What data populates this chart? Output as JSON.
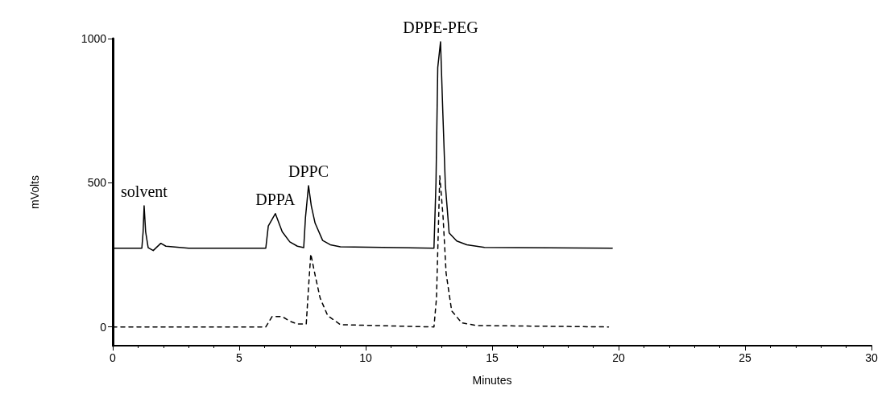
{
  "chart_data": {
    "type": "line",
    "xlabel": "Minutes",
    "ylabel": "mVolts",
    "xlim": [
      0,
      30
    ],
    "xticks": [
      0,
      5,
      10,
      15,
      20,
      25,
      30
    ],
    "ylim": [
      -65,
      1000
    ],
    "yticks": [
      0,
      500,
      1000
    ],
    "grid": false,
    "marker": "none",
    "annotations": [
      {
        "text": "solvent",
        "x": 1.24,
        "y": 420
      },
      {
        "text": "DPPA",
        "x": 6.43,
        "y": 393
      },
      {
        "text": "DPPC",
        "x": 7.74,
        "y": 490
      },
      {
        "text": "DPPE-PEG",
        "x": 12.96,
        "y": 989
      }
    ],
    "series": [
      {
        "color": "#000000",
        "line_style": "solid",
        "x": [
          0,
          0.05,
          1.15,
          1.2,
          1.24,
          1.3,
          1.4,
          1.6,
          1.9,
          2.1,
          3,
          6.05,
          6.15,
          6.43,
          6.7,
          7.0,
          7.3,
          7.55,
          7.62,
          7.74,
          7.85,
          8.0,
          8.3,
          8.6,
          9.0,
          12.7,
          12.78,
          12.85,
          12.96,
          13.05,
          13.15,
          13.3,
          13.6,
          14.0,
          14.7,
          19.75
        ],
        "values": [
          260,
          273,
          273,
          330,
          420,
          330,
          275,
          265,
          290,
          280,
          273,
          273,
          350,
          393,
          330,
          295,
          280,
          275,
          380,
          490,
          420,
          360,
          300,
          285,
          278,
          273,
          500,
          900,
          989,
          744,
          493,
          326,
          298,
          285,
          276,
          273
        ]
      },
      {
        "color": "#000000",
        "line_style": "dashed",
        "x": [
          0,
          6.05,
          6.3,
          6.7,
          7.0,
          7.3,
          7.65,
          7.75,
          7.83,
          8.0,
          8.2,
          8.5,
          9.0,
          12.7,
          12.8,
          12.93,
          13.06,
          13.18,
          13.4,
          13.8,
          14.4,
          19.6
        ],
        "values": [
          0,
          0,
          36,
          36,
          20,
          10,
          10,
          150,
          253,
          180,
          100,
          39,
          8,
          0,
          100,
          524,
          382,
          187,
          56,
          14,
          5,
          0
        ]
      }
    ]
  }
}
